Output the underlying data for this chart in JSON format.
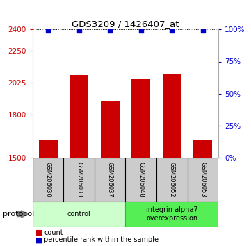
{
  "title": "GDS3209 / 1426407_at",
  "samples": [
    "GSM206030",
    "GSM206033",
    "GSM206037",
    "GSM206048",
    "GSM206052",
    "GSM206053"
  ],
  "counts": [
    1618,
    2082,
    1898,
    2048,
    2090,
    1618
  ],
  "percentile_ranks": [
    99,
    99,
    99,
    99,
    99,
    99
  ],
  "ylim_left": [
    1500,
    2400
  ],
  "ylim_right": [
    0,
    100
  ],
  "yticks_left": [
    1500,
    1800,
    2025,
    2250,
    2400
  ],
  "yticks_right": [
    0,
    25,
    50,
    75,
    100
  ],
  "bar_color": "#cc0000",
  "dot_color": "#0000cc",
  "bar_width": 0.6,
  "groups": [
    {
      "label": "control",
      "indices": [
        0,
        1,
        2
      ],
      "color": "#ccffcc",
      "border": "#44aa44"
    },
    {
      "label": "integrin alpha7\noverexpression",
      "indices": [
        3,
        4,
        5
      ],
      "color": "#55ee55",
      "border": "#44aa44"
    }
  ],
  "background_color": "#ffffff",
  "sample_box_color": "#cccccc",
  "legend_count_color": "#cc0000",
  "legend_pct_color": "#0000cc"
}
